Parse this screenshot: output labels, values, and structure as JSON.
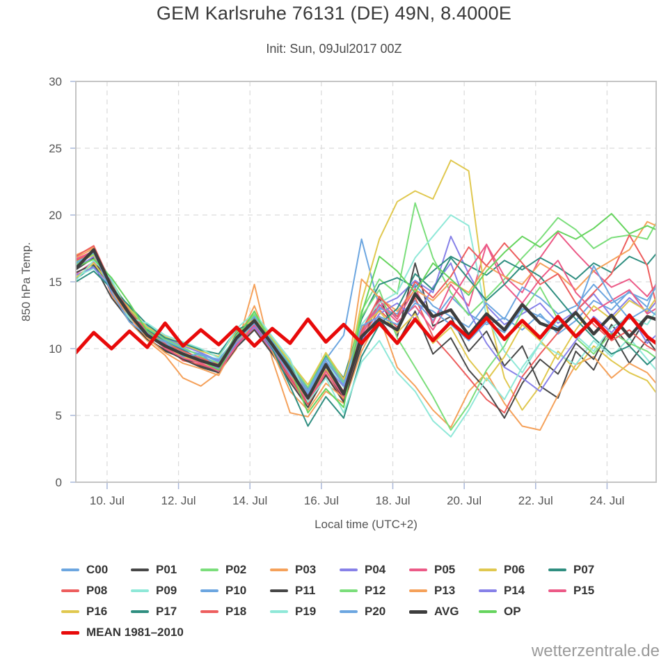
{
  "header": {
    "title": "GEM Karlsruhe 76131 (DE) 49N, 8.4000E",
    "subtitle": "Init: Sun, 09Jul2017 00Z"
  },
  "watermark": "wetterzentrale.de",
  "chart_data": {
    "type": "line",
    "title": "GEM Karlsruhe 76131 (DE) 49N, 8.4000E",
    "subtitle": "Init: Sun, 09Jul2017 00Z",
    "xlabel": "Local time (UTC+2)",
    "ylabel": "850 hPa Temp.",
    "ylim": [
      0,
      30
    ],
    "xlim_days": [
      0,
      16.25
    ],
    "grid": "dashed",
    "legend_position": "bottom",
    "y_ticks": [
      0,
      5,
      10,
      15,
      20,
      25,
      30
    ],
    "x_ticks": [
      {
        "t": 0.875,
        "label": "10. Jul"
      },
      {
        "t": 2.875,
        "label": "12. Jul"
      },
      {
        "t": 4.875,
        "label": "14. Jul"
      },
      {
        "t": 6.875,
        "label": "16. Jul"
      },
      {
        "t": 8.875,
        "label": "18. Jul"
      },
      {
        "t": 10.875,
        "label": "20. Jul"
      },
      {
        "t": 12.875,
        "label": "22. Jul"
      },
      {
        "t": 14.875,
        "label": "24. Jul"
      }
    ],
    "x_days": [
      0,
      0.5,
      1,
      1.5,
      2,
      2.5,
      3,
      3.5,
      4,
      4.5,
      5,
      5.5,
      6,
      6.5,
      7,
      7.5,
      8,
      8.5,
      9,
      9.5,
      10,
      10.5,
      11,
      11.5,
      12,
      12.5,
      13,
      13.5,
      14,
      14.5,
      15,
      15.5,
      16,
      16.25
    ],
    "series": [
      {
        "name": "C00",
        "label": "C00",
        "color": "#6CA6E0",
        "width": 2,
        "values": [
          16.2,
          17.1,
          14.4,
          12.1,
          11.5,
          10.4,
          9.9,
          9.6,
          9.0,
          10.2,
          11.6,
          9.8,
          7.9,
          6.6,
          9.2,
          11.0,
          18.2,
          13.1,
          12.4,
          13.6,
          12.1,
          13.9,
          12.6,
          11.8,
          12.3,
          11.4,
          12.6,
          11.1,
          12.1,
          13.6,
          12.9,
          14.3,
          13.1,
          14.9
        ]
      },
      {
        "name": "P01",
        "label": "P01",
        "color": "#474747",
        "width": 2,
        "values": [
          15.9,
          16.8,
          14.2,
          12.9,
          10.8,
          9.8,
          9.3,
          8.7,
          8.3,
          10.5,
          11.8,
          9.9,
          7.8,
          5.9,
          8.4,
          6.2,
          10.3,
          13.8,
          10.9,
          16.4,
          11.7,
          12.4,
          9.8,
          11.3,
          8.7,
          10.2,
          7.2,
          6.3,
          9.8,
          8.4,
          11.2,
          8.9,
          10.7,
          9.8
        ]
      },
      {
        "name": "P02",
        "label": "P02",
        "color": "#7BDE7B",
        "width": 2,
        "values": [
          16.5,
          17.3,
          15.1,
          12.8,
          11.2,
          10.5,
          9.8,
          9.3,
          8.5,
          11.2,
          12.5,
          10.6,
          8.6,
          6.8,
          9.4,
          7.2,
          12.8,
          15.2,
          14.1,
          20.9,
          16.8,
          14.2,
          12.5,
          13.8,
          15.2,
          16.8,
          18.2,
          19.8,
          18.9,
          17.5,
          18.3,
          18.5,
          18.2,
          19.4
        ]
      },
      {
        "name": "P03",
        "label": "P03",
        "color": "#F5A15A",
        "width": 2,
        "values": [
          16.8,
          17.5,
          14.0,
          12.0,
          10.6,
          9.5,
          7.8,
          7.2,
          8.2,
          10.0,
          14.8,
          9.2,
          5.2,
          4.9,
          6.8,
          5.9,
          9.8,
          12.4,
          8.6,
          7.2,
          5.4,
          4.1,
          6.8,
          8.2,
          5.9,
          4.2,
          3.9,
          6.5,
          8.8,
          9.4,
          7.8,
          8.9,
          8.2,
          7.4
        ]
      },
      {
        "name": "P04",
        "label": "P04",
        "color": "#8781E8",
        "width": 2,
        "values": [
          16.0,
          16.9,
          14.7,
          12.5,
          11.6,
          10.8,
          10.2,
          9.7,
          9.1,
          10.9,
          12.2,
          10.4,
          8.5,
          6.7,
          9.0,
          7.5,
          11.5,
          13.2,
          13.8,
          15.1,
          14.2,
          18.4,
          15.6,
          13.2,
          11.8,
          12.6,
          13.4,
          11.9,
          12.8,
          14.1,
          12.4,
          13.8,
          12.7,
          13.5
        ]
      },
      {
        "name": "P05",
        "label": "P05",
        "color": "#EC5A87",
        "width": 2,
        "values": [
          15.6,
          16.5,
          14.3,
          12.4,
          11.0,
          10.1,
          9.5,
          9.0,
          8.6,
          10.6,
          11.7,
          10.1,
          8.1,
          6.4,
          8.7,
          6.8,
          11.2,
          13.6,
          12.2,
          14.5,
          11.9,
          14.8,
          13.2,
          17.8,
          15.4,
          14.2,
          16.8,
          18.7,
          17.2,
          15.8,
          14.6,
          15.2,
          13.9,
          14.8
        ]
      },
      {
        "name": "P06",
        "label": "P06",
        "color": "#E0C84F",
        "width": 2,
        "values": [
          16.4,
          17.0,
          14.5,
          12.7,
          11.1,
          10.0,
          9.4,
          8.9,
          8.4,
          10.4,
          11.9,
          10.0,
          8.0,
          6.1,
          8.5,
          6.5,
          13.5,
          18.2,
          21.0,
          21.8,
          21.2,
          24.1,
          23.3,
          13.2,
          7.8,
          5.4,
          7.2,
          9.8,
          8.4,
          10.2,
          9.1,
          8.2,
          7.6,
          6.7
        ]
      },
      {
        "name": "P07",
        "label": "P07",
        "color": "#2F8E80",
        "width": 2,
        "values": [
          15.2,
          16.2,
          14.8,
          13.1,
          11.4,
          10.6,
          9.9,
          9.2,
          8.8,
          11.1,
          12.3,
          10.5,
          8.7,
          7.0,
          9.5,
          7.8,
          12.2,
          14.8,
          15.3,
          14.6,
          15.8,
          16.9,
          16.2,
          15.5,
          16.6,
          15.9,
          16.8,
          16.1,
          15.2,
          16.4,
          15.7,
          16.9,
          16.3,
          17.1
        ]
      },
      {
        "name": "P08",
        "label": "P08",
        "color": "#ED5E5E",
        "width": 2,
        "values": [
          16.6,
          17.2,
          14.1,
          12.3,
          10.9,
          10.2,
          9.1,
          8.8,
          8.4,
          10.3,
          11.5,
          9.7,
          7.7,
          5.8,
          8.1,
          6.1,
          10.8,
          12.9,
          11.6,
          13.8,
          10.9,
          9.4,
          7.8,
          6.2,
          5.2,
          7.9,
          9.6,
          11.2,
          12.8,
          14.2,
          15.6,
          18.5,
          16.2,
          13.3
        ]
      },
      {
        "name": "P09",
        "label": "P09",
        "color": "#8FE8D8",
        "width": 2,
        "values": [
          15.4,
          16.0,
          14.6,
          12.2,
          11.3,
          10.4,
          9.7,
          9.1,
          8.7,
          10.7,
          12.0,
          10.2,
          8.2,
          6.5,
          8.9,
          7.1,
          11.8,
          13.4,
          14.2,
          16.8,
          18.4,
          20.0,
          19.2,
          12.4,
          9.8,
          8.2,
          10.4,
          9.6,
          8.8,
          10.6,
          9.4,
          10.8,
          9.2,
          8.4
        ]
      },
      {
        "name": "P10",
        "label": "P10",
        "color": "#6CA6E0",
        "width": 2,
        "values": [
          16.1,
          17.4,
          15.0,
          12.6,
          11.7,
          10.6,
          10.0,
          9.5,
          9.2,
          10.8,
          12.4,
          10.5,
          8.8,
          6.9,
          9.3,
          7.6,
          11.4,
          13.0,
          12.6,
          14.8,
          13.2,
          12.4,
          11.6,
          13.4,
          12.2,
          14.6,
          13.8,
          12.6,
          13.2,
          14.8,
          13.4,
          14.2,
          13.6,
          14.6
        ]
      },
      {
        "name": "P11",
        "label": "P11",
        "color": "#474747",
        "width": 2,
        "values": [
          15.7,
          16.3,
          13.8,
          12.1,
          10.7,
          9.9,
          9.2,
          8.6,
          8.2,
          10.1,
          11.4,
          9.6,
          7.5,
          5.6,
          8.0,
          6.0,
          10.2,
          12.2,
          10.4,
          12.8,
          9.6,
          10.8,
          8.4,
          6.9,
          4.8,
          7.4,
          9.2,
          8.1,
          10.4,
          9.2,
          11.8,
          10.2,
          12.4,
          12.1
        ]
      },
      {
        "name": "P12",
        "label": "P12",
        "color": "#7BDE7B",
        "width": 2,
        "values": [
          16.3,
          17.1,
          14.9,
          12.9,
          11.5,
          10.7,
          10.1,
          9.4,
          8.9,
          11.0,
          12.6,
          10.7,
          8.9,
          7.1,
          9.6,
          7.4,
          12.4,
          14.4,
          10.8,
          8.6,
          6.4,
          3.9,
          5.8,
          8.4,
          10.2,
          12.8,
          14.6,
          12.2,
          10.8,
          9.6,
          11.2,
          10.4,
          9.8,
          9.3
        ]
      },
      {
        "name": "P13",
        "label": "P13",
        "color": "#F5A15A",
        "width": 2,
        "values": [
          17.0,
          17.6,
          14.3,
          12.4,
          10.8,
          9.7,
          8.9,
          8.5,
          8.0,
          10.5,
          13.2,
          9.8,
          6.8,
          5.4,
          7.4,
          6.3,
          15.2,
          13.8,
          12.8,
          14.4,
          13.6,
          15.0,
          14.2,
          16.2,
          15.4,
          14.8,
          16.4,
          15.6,
          14.4,
          15.8,
          16.6,
          17.4,
          19.5,
          19.2
        ]
      },
      {
        "name": "P14",
        "label": "P14",
        "color": "#8781E8",
        "width": 2,
        "values": [
          15.5,
          16.1,
          14.4,
          12.7,
          11.2,
          10.3,
          9.6,
          9.2,
          8.5,
          10.4,
          11.6,
          9.9,
          8.3,
          6.6,
          8.6,
          7.2,
          10.6,
          12.6,
          13.4,
          12.2,
          14.6,
          16.4,
          12.8,
          10.4,
          8.6,
          7.8,
          6.8,
          8.8,
          10.6,
          12.4,
          11.2,
          12.6,
          10.4,
          11.0
        ]
      },
      {
        "name": "P15",
        "label": "P15",
        "color": "#EC5A87",
        "width": 2,
        "values": [
          16.7,
          17.3,
          14.6,
          12.5,
          11.1,
          10.0,
          9.3,
          8.9,
          8.3,
          10.2,
          11.8,
          10.0,
          7.9,
          6.0,
          8.3,
          6.4,
          11.0,
          13.3,
          12.0,
          13.2,
          11.4,
          13.6,
          15.8,
          17.8,
          14.8,
          13.4,
          15.2,
          16.6,
          14.2,
          12.8,
          13.6,
          14.4,
          12.6,
          13.0
        ]
      },
      {
        "name": "P16",
        "label": "P16",
        "color": "#E0C84F",
        "width": 2,
        "values": [
          15.3,
          16.4,
          14.7,
          13.0,
          11.6,
          10.9,
          10.3,
          9.8,
          9.4,
          11.3,
          12.2,
          10.8,
          9.0,
          7.3,
          9.7,
          7.7,
          11.6,
          12.8,
          11.2,
          12.6,
          10.4,
          11.6,
          9.2,
          7.6,
          9.4,
          11.8,
          10.6,
          9.2,
          11.4,
          13.2,
          12.2,
          13.6,
          12.8,
          13.8
        ]
      },
      {
        "name": "P17",
        "label": "P17",
        "color": "#2F8E80",
        "width": 2,
        "values": [
          15.0,
          15.8,
          14.5,
          13.2,
          11.8,
          10.8,
          10.4,
          9.9,
          9.6,
          11.4,
          12.0,
          10.0,
          7.2,
          4.2,
          6.4,
          4.8,
          9.4,
          11.8,
          13.0,
          15.6,
          14.4,
          16.8,
          15.2,
          13.6,
          14.8,
          16.2,
          15.4,
          13.8,
          12.2,
          10.8,
          9.6,
          10.2,
          8.8,
          9.4
        ]
      },
      {
        "name": "P18",
        "label": "P18",
        "color": "#ED5E5E",
        "width": 2,
        "values": [
          16.9,
          17.7,
          14.8,
          12.8,
          11.3,
          10.4,
          9.8,
          9.3,
          8.8,
          10.9,
          12.1,
          10.3,
          8.4,
          6.2,
          8.9,
          6.6,
          11.3,
          13.9,
          12.4,
          15.0,
          13.8,
          15.4,
          17.6,
          16.2,
          17.9,
          16.4,
          14.8,
          15.6,
          13.4,
          11.8,
          10.6,
          11.4,
          10.2,
          9.8
        ]
      },
      {
        "name": "P19",
        "label": "P19",
        "color": "#8FE8D8",
        "width": 2,
        "values": [
          15.1,
          16.6,
          15.2,
          12.3,
          11.9,
          11.0,
          10.5,
          10.0,
          9.3,
          11.5,
          12.7,
          10.9,
          9.2,
          6.0,
          7.8,
          5.2,
          9.0,
          10.6,
          8.2,
          6.8,
          4.6,
          3.4,
          5.4,
          7.8,
          6.2,
          8.6,
          10.4,
          12.2,
          11.0,
          9.8,
          11.6,
          12.4,
          11.8,
          12.8
        ]
      },
      {
        "name": "P20",
        "label": "P20",
        "color": "#6CA6E0",
        "width": 2,
        "values": [
          16.4,
          17.2,
          14.2,
          12.0,
          11.0,
          10.5,
          9.4,
          9.6,
          8.6,
          10.6,
          11.9,
          10.1,
          8.1,
          6.7,
          9.1,
          7.3,
          11.7,
          12.4,
          11.8,
          13.4,
          12.8,
          11.8,
          10.6,
          12.0,
          11.2,
          13.0,
          12.4,
          11.6,
          12.6,
          16.2,
          13.8,
          12.2,
          13.0,
          12.5
        ]
      },
      {
        "name": "AVG",
        "label": "AVG",
        "color": "#3D3D3D",
        "width": 4.5,
        "values": [
          16.0,
          17.4,
          14.6,
          12.6,
          11.0,
          10.2,
          9.6,
          9.1,
          8.7,
          10.8,
          12.1,
          10.3,
          8.4,
          6.3,
          8.8,
          6.6,
          10.9,
          12.2,
          11.4,
          14.1,
          12.4,
          12.9,
          11.0,
          12.6,
          11.4,
          13.3,
          11.9,
          11.4,
          12.7,
          11.1,
          12.5,
          10.9,
          12.4,
          12.2
        ]
      },
      {
        "name": "OP",
        "label": "OP",
        "color": "#66D45E",
        "width": 2,
        "values": [
          16.1,
          16.7,
          15.3,
          13.4,
          11.3,
          10.2,
          9.5,
          9.1,
          8.4,
          10.7,
          12.8,
          10.2,
          8.5,
          5.2,
          7.0,
          5.6,
          12.6,
          16.9,
          15.8,
          14.2,
          16.4,
          15.2,
          14.0,
          15.8,
          17.2,
          18.4,
          17.6,
          18.8,
          18.2,
          19.0,
          20.1,
          18.6,
          19.2,
          18.9
        ]
      },
      {
        "name": "MEAN",
        "label": "MEAN 1981–2010",
        "color": "#E80A0A",
        "width": 5,
        "values": [
          9.7,
          11.2,
          10.0,
          11.3,
          10.1,
          11.9,
          10.2,
          11.4,
          10.3,
          11.6,
          10.2,
          11.5,
          10.4,
          12.2,
          10.5,
          11.8,
          10.4,
          11.9,
          10.4,
          12.2,
          10.6,
          12.0,
          10.8,
          12.3,
          10.7,
          12.1,
          10.8,
          12.4,
          10.9,
          12.2,
          10.8,
          12.5,
          10.9,
          10.4
        ]
      }
    ]
  }
}
